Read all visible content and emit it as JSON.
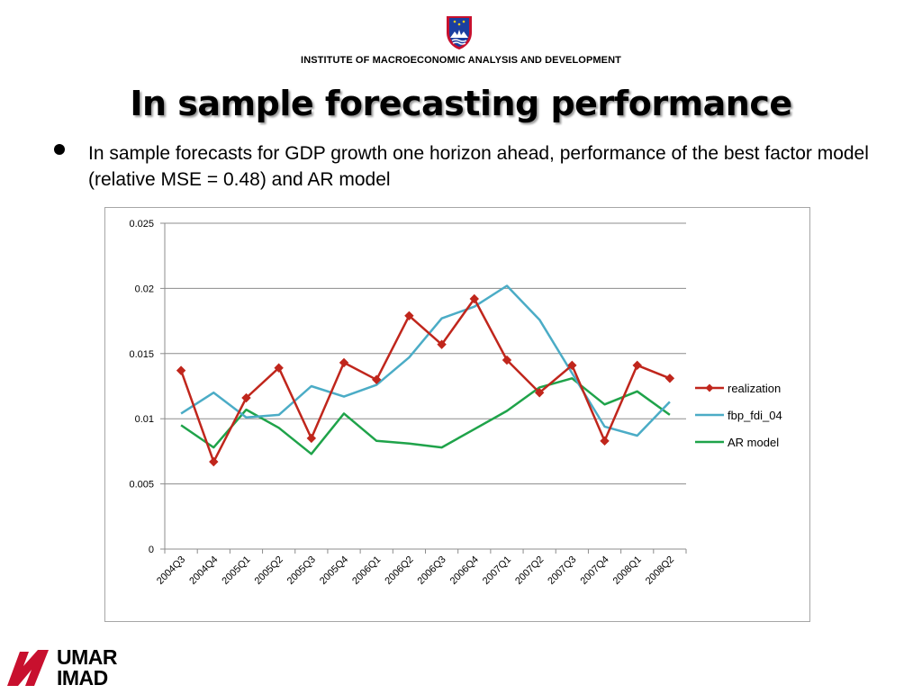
{
  "header": {
    "institute": "INSTITUTE OF MACROECONOMIC ANALYSIS AND DEVELOPMENT",
    "title": "In sample forecasting performance",
    "crest_icon": "slovenia-coat-of-arms-icon"
  },
  "bullet": {
    "text": "In sample forecasts for GDP growth one horizon ahead, performance of the best factor model (relative MSE = 0.48) and AR model"
  },
  "footer": {
    "logo_icon": "umar-imad-logo-icon",
    "logo_line1": "UMAR",
    "logo_line2": "IMAD",
    "logo_color": "#c8102e"
  },
  "chart_data": {
    "type": "line",
    "title": "",
    "xlabel": "",
    "ylabel": "",
    "ylim": [
      0,
      0.025
    ],
    "yticks": [
      "0",
      "0.005",
      "0.01",
      "0.015",
      "0.02",
      "0.025"
    ],
    "grid": true,
    "legend_position": "right",
    "categories": [
      "2004Q3",
      "2004Q4",
      "2005Q1",
      "2005Q2",
      "2005Q3",
      "2005Q4",
      "2006Q1",
      "2006Q2",
      "2006Q3",
      "2006Q4",
      "2007Q1",
      "2007Q2",
      "2007Q3",
      "2007Q4",
      "2008Q1",
      "2008Q2"
    ],
    "series": [
      {
        "name": "realization",
        "color": "#c0261c",
        "marker": "diamond",
        "values": [
          0.0137,
          0.0067,
          0.0116,
          0.0139,
          0.0085,
          0.0143,
          0.013,
          0.0179,
          0.0157,
          0.0192,
          0.0145,
          0.012,
          0.0141,
          0.0083,
          0.0141,
          0.0131
        ]
      },
      {
        "name": "fbp_fdi_04",
        "color": "#4bacc6",
        "marker": "none",
        "values": [
          0.0104,
          0.012,
          0.0101,
          0.0103,
          0.0125,
          0.0117,
          0.0126,
          0.0147,
          0.0177,
          0.0186,
          0.0202,
          0.0176,
          0.0135,
          0.0094,
          0.0087,
          0.0113
        ]
      },
      {
        "name": "AR model",
        "color": "#1fa34a",
        "marker": "none",
        "values": [
          0.0095,
          0.0078,
          0.0107,
          0.0093,
          0.0073,
          0.0104,
          0.0083,
          0.0081,
          0.0078,
          0.0092,
          0.0106,
          0.0124,
          0.0131,
          0.0111,
          0.0121,
          0.0103
        ]
      }
    ]
  }
}
